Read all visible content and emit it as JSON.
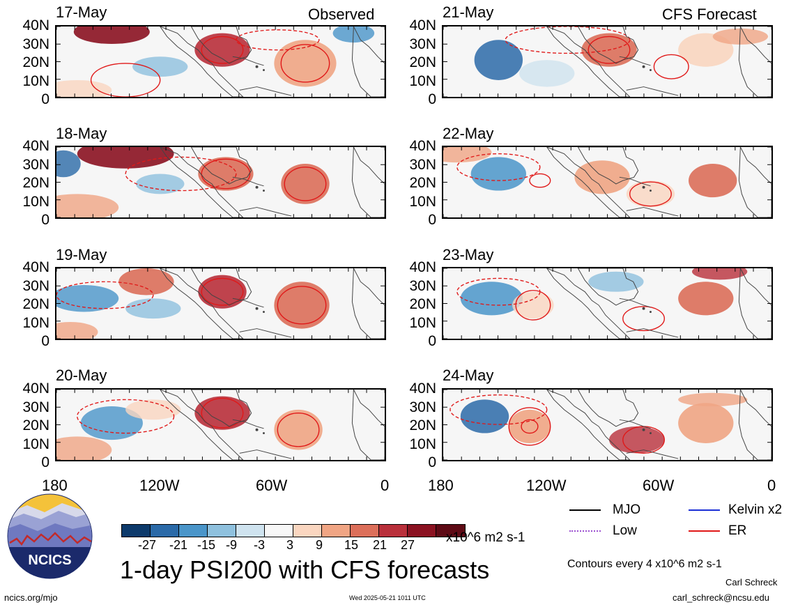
{
  "panels_left": [
    {
      "date": "17-May",
      "header": "Observed"
    },
    {
      "date": "18-May",
      "header": ""
    },
    {
      "date": "19-May",
      "header": ""
    },
    {
      "date": "20-May",
      "header": ""
    }
  ],
  "panels_right": [
    {
      "date": "21-May",
      "header": "CFS Forecast"
    },
    {
      "date": "22-May",
      "header": ""
    },
    {
      "date": "23-May",
      "header": ""
    },
    {
      "date": "24-May",
      "header": ""
    }
  ],
  "lat_ticks": [
    "40N",
    "30N",
    "20N",
    "10N",
    "0"
  ],
  "lon_ticks": [
    "180",
    "120W",
    "60W",
    "0"
  ],
  "colorbar": {
    "colors": [
      "#0d3a6b",
      "#2b6aa8",
      "#4a95c9",
      "#8fc1de",
      "#cfe3ef",
      "#f7f7f7",
      "#fad6c0",
      "#f0a584",
      "#dc6f5a",
      "#b9303b",
      "#8b1221",
      "#5e0a15"
    ],
    "labels": [
      "-27",
      "-21",
      "-15",
      "-9",
      "-3",
      "3",
      "9",
      "15",
      "21",
      "27"
    ],
    "units": "x10^6 m2 s-1"
  },
  "legend": {
    "items": [
      {
        "label": "MJO",
        "color": "#000000",
        "style": "solid"
      },
      {
        "label": "Kelvin x2",
        "color": "#1a2fd6",
        "style": "solid"
      },
      {
        "label": "Low",
        "color": "#9b4fd0",
        "style": "dotted"
      },
      {
        "label": "ER",
        "color": "#e01818",
        "style": "solid"
      }
    ]
  },
  "title": "1-day PSI200 with CFS forecasts",
  "contour_note": "Contours every 4 x10^6 m2 s-1",
  "author": "Carl Schreck",
  "email": "carl_schreck@ncsu.edu",
  "url": "ncics.org/mjo",
  "timestamp": "Wed 2025-05-21 1011 UTC",
  "logo_text": "NCICS"
}
